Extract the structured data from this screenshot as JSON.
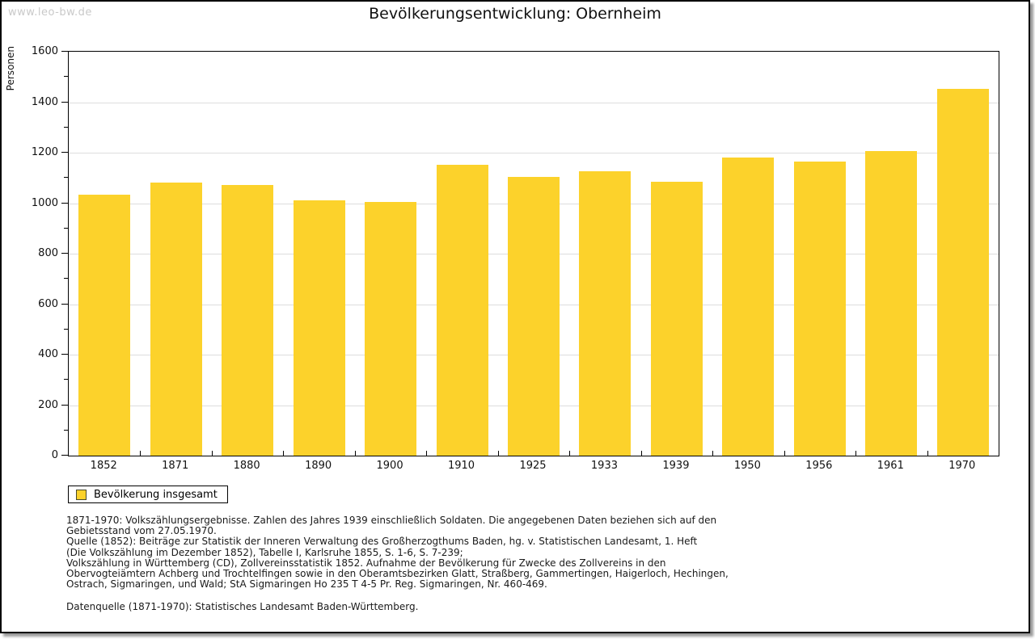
{
  "watermark": "www.leo-bw.de",
  "title": "Bevölkerungsentwicklung: Obernheim",
  "chart_data": {
    "type": "bar",
    "title": "Bevölkerungsentwicklung: Obernheim",
    "ylabel": "Personen",
    "xlabel": "",
    "categories": [
      "1852",
      "1871",
      "1880",
      "1890",
      "1900",
      "1910",
      "1925",
      "1933",
      "1939",
      "1950",
      "1956",
      "1961",
      "1970"
    ],
    "values": [
      1033,
      1081,
      1072,
      1010,
      1004,
      1152,
      1103,
      1126,
      1085,
      1180,
      1164,
      1206,
      1452
    ],
    "ylim": [
      0,
      1600
    ],
    "ytick_major_interval": 200,
    "ytick_minor_interval": 100,
    "grid": true,
    "legend_entries": [
      "Bevölkerung insgesamt"
    ],
    "legend_position": "bottom-left",
    "bar_color": "#FCD22B",
    "grid_color": "#DDDDDD"
  },
  "legend": {
    "label": "Bevölkerung insgesamt"
  },
  "footnotes": {
    "lines": [
      "1871-1970: Volkszählungsergebnisse. Zahlen des Jahres 1939 einschließlich Soldaten. Die angegebenen Daten beziehen sich auf den",
      "Gebietsstand vom 27.05.1970.",
      "Quelle (1852): Beiträge zur Statistik der Inneren Verwaltung des Großherzogthums Baden, hg. v. Statistischen Landesamt, 1. Heft",
      "(Die Volkszählung im Dezember 1852), Tabelle I, Karlsruhe 1855, S. 1-6, S. 7-239;",
      "Volkszählung in Württemberg (CD), Zollvereinsstatistik 1852. Aufnahme der Bevölkerung für Zwecke des Zollvereins in den",
      "Obervogteiämtern Achberg und Trochtelfingen sowie in den Oberamtsbezirken Glatt, Straßberg, Gammertingen, Haigerloch, Hechingen,",
      "Ostrach, Sigmaringen, und Wald; StA Sigmaringen Ho 235 T 4-5 Pr. Reg. Sigmaringen, Nr. 460-469."
    ],
    "datasource": "Datenquelle (1871-1970): Statistisches Landesamt Baden-Württemberg."
  }
}
